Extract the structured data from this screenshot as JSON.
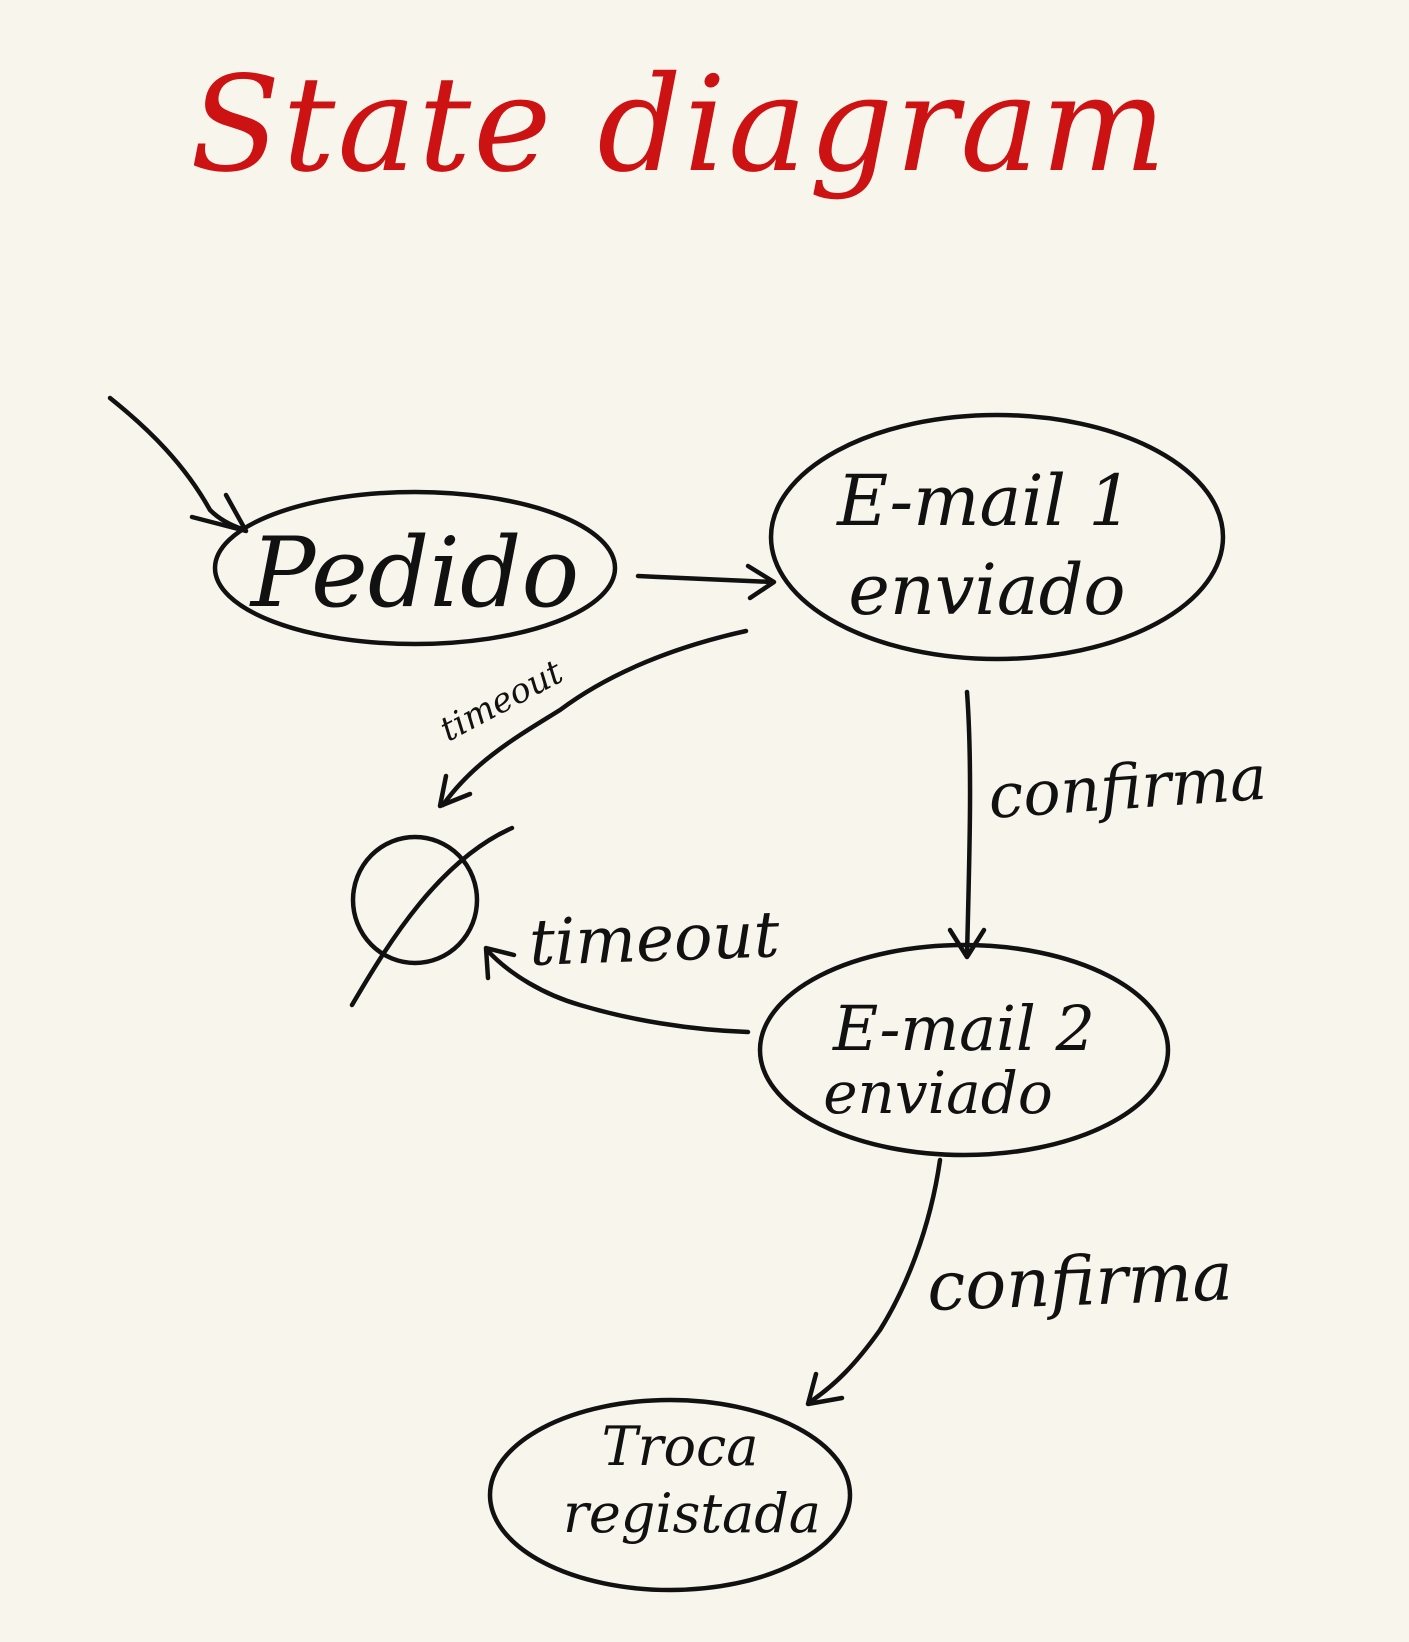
{
  "title": "State diagram",
  "colors": {
    "background": "#f8f6ec",
    "title": "#cc1212",
    "ink": "#111111"
  },
  "states": {
    "pedido": "Pedido",
    "email1_line1": "E-mail 1",
    "email1_line2": "enviado",
    "email2_line1": "E-mail 2",
    "email2_line2": "enviado",
    "troca_line1": "Troca",
    "troca_line2": "registada",
    "empty": "∅"
  },
  "transitions": {
    "pedido_to_email1": "",
    "email1_timeout": "timeout",
    "email1_confirma": "confirma",
    "email2_timeout": "timeout",
    "email2_confirma": "confirma"
  }
}
